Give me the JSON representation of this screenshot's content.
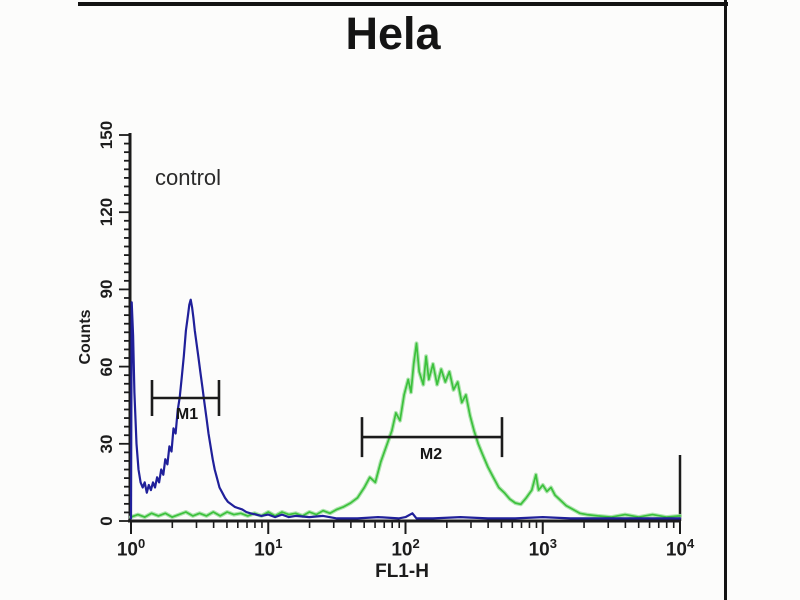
{
  "colors": {
    "axis": "#1b1b1b",
    "frame": "#131313",
    "curve_blue": "#20209a",
    "curve_green": "#3cc13c",
    "green_halo": "#a0dfa0",
    "background": "#fcfcfb",
    "text": "#1c1c1c"
  },
  "chart_data": {
    "type": "line",
    "title": "Hela",
    "xlabel": "FL1-H",
    "ylabel": "Counts",
    "x_scale": "log",
    "xlim_log": [
      0,
      4
    ],
    "ylim": [
      0,
      150
    ],
    "grid": false,
    "legend": "none",
    "x_tick_base": "10",
    "x_tick_exponents": [
      0,
      1,
      2,
      3,
      4
    ],
    "y_ticks": [
      0,
      30,
      60,
      90,
      120,
      150
    ],
    "annotations": [
      "control"
    ],
    "markers": [
      {
        "label": "M1",
        "x1_log": 0.153,
        "x2_log": 0.641,
        "y_counts": 47.8
      },
      {
        "label": "M2",
        "x1_log": 1.683,
        "x2_log": 2.703,
        "y_counts": 32.6
      }
    ],
    "series": [
      {
        "id": "blue",
        "label_on_plot": "control",
        "color": "#20209a",
        "peak_log_x": 0.435,
        "peak_counts": 86,
        "points": [
          [
            0.0,
            1
          ],
          [
            0.005,
            85
          ],
          [
            0.015,
            72
          ],
          [
            0.025,
            50
          ],
          [
            0.04,
            30
          ],
          [
            0.055,
            20
          ],
          [
            0.07,
            15
          ],
          [
            0.085,
            13
          ],
          [
            0.1,
            15
          ],
          [
            0.115,
            11
          ],
          [
            0.13,
            14
          ],
          [
            0.145,
            12
          ],
          [
            0.16,
            15
          ],
          [
            0.175,
            13
          ],
          [
            0.19,
            17
          ],
          [
            0.205,
            15
          ],
          [
            0.22,
            20
          ],
          [
            0.235,
            18
          ],
          [
            0.25,
            24
          ],
          [
            0.265,
            22
          ],
          [
            0.28,
            29
          ],
          [
            0.295,
            27
          ],
          [
            0.31,
            36
          ],
          [
            0.325,
            34
          ],
          [
            0.34,
            43
          ],
          [
            0.355,
            48
          ],
          [
            0.37,
            56
          ],
          [
            0.385,
            64
          ],
          [
            0.4,
            74
          ],
          [
            0.415,
            80
          ],
          [
            0.425,
            84
          ],
          [
            0.435,
            86
          ],
          [
            0.445,
            83
          ],
          [
            0.455,
            79
          ],
          [
            0.465,
            74
          ],
          [
            0.475,
            70
          ],
          [
            0.49,
            64
          ],
          [
            0.505,
            58
          ],
          [
            0.52,
            52
          ],
          [
            0.535,
            46
          ],
          [
            0.55,
            40
          ],
          [
            0.565,
            34
          ],
          [
            0.58,
            29
          ],
          [
            0.595,
            24
          ],
          [
            0.61,
            20
          ],
          [
            0.625,
            17
          ],
          [
            0.645,
            13
          ],
          [
            0.665,
            11
          ],
          [
            0.685,
            9
          ],
          [
            0.705,
            7.5
          ],
          [
            0.73,
            6.5
          ],
          [
            0.755,
            5.5
          ],
          [
            0.78,
            5
          ],
          [
            0.81,
            4.5
          ],
          [
            0.84,
            3.5
          ],
          [
            0.87,
            3
          ],
          [
            0.91,
            2.5
          ],
          [
            0.95,
            2
          ],
          [
            1.0,
            2.5
          ],
          [
            1.05,
            1.5
          ],
          [
            1.1,
            2.5
          ],
          [
            1.15,
            1.5
          ],
          [
            1.2,
            2
          ],
          [
            1.3,
            1.5
          ],
          [
            1.4,
            2
          ],
          [
            1.5,
            1
          ],
          [
            1.65,
            1
          ],
          [
            1.8,
            1.5
          ],
          [
            1.95,
            1
          ],
          [
            2.0,
            1.5
          ],
          [
            2.05,
            3
          ],
          [
            2.08,
            1
          ],
          [
            2.2,
            1
          ],
          [
            2.4,
            1.5
          ],
          [
            2.6,
            1
          ],
          [
            2.8,
            1
          ],
          [
            3.0,
            1.5
          ],
          [
            3.2,
            1
          ],
          [
            3.4,
            1
          ],
          [
            3.6,
            1
          ],
          [
            3.8,
            1
          ],
          [
            4.0,
            1
          ]
        ]
      },
      {
        "id": "green",
        "label_on_plot": "",
        "color": "#3cc13c",
        "peak_log_x": 2.08,
        "peak_counts": 69,
        "points": [
          [
            0.0,
            1.5
          ],
          [
            0.05,
            2.5
          ],
          [
            0.1,
            1.5
          ],
          [
            0.15,
            3
          ],
          [
            0.2,
            2
          ],
          [
            0.25,
            3
          ],
          [
            0.3,
            1.5
          ],
          [
            0.35,
            2.5
          ],
          [
            0.4,
            3.5
          ],
          [
            0.45,
            2
          ],
          [
            0.5,
            3
          ],
          [
            0.55,
            2
          ],
          [
            0.6,
            3.5
          ],
          [
            0.65,
            2
          ],
          [
            0.7,
            3.5
          ],
          [
            0.75,
            2.5
          ],
          [
            0.8,
            3
          ],
          [
            0.85,
            2
          ],
          [
            0.9,
            3
          ],
          [
            0.95,
            2
          ],
          [
            1.0,
            3.5
          ],
          [
            1.05,
            2
          ],
          [
            1.1,
            3.5
          ],
          [
            1.15,
            2.5
          ],
          [
            1.2,
            3
          ],
          [
            1.25,
            2
          ],
          [
            1.3,
            3.5
          ],
          [
            1.35,
            2.5
          ],
          [
            1.4,
            4
          ],
          [
            1.45,
            3
          ],
          [
            1.5,
            4.5
          ],
          [
            1.55,
            5.5
          ],
          [
            1.6,
            7
          ],
          [
            1.65,
            9
          ],
          [
            1.7,
            13
          ],
          [
            1.74,
            17
          ],
          [
            1.78,
            15
          ],
          [
            1.82,
            23
          ],
          [
            1.86,
            29
          ],
          [
            1.9,
            35
          ],
          [
            1.93,
            42
          ],
          [
            1.96,
            39
          ],
          [
            1.99,
            49
          ],
          [
            2.02,
            55
          ],
          [
            2.04,
            50
          ],
          [
            2.06,
            61
          ],
          [
            2.08,
            69
          ],
          [
            2.1,
            58
          ],
          [
            2.13,
            53
          ],
          [
            2.15,
            64
          ],
          [
            2.17,
            55
          ],
          [
            2.2,
            61
          ],
          [
            2.23,
            53
          ],
          [
            2.26,
            59
          ],
          [
            2.29,
            54
          ],
          [
            2.32,
            58
          ],
          [
            2.35,
            51
          ],
          [
            2.38,
            54
          ],
          [
            2.41,
            46
          ],
          [
            2.44,
            49
          ],
          [
            2.47,
            41
          ],
          [
            2.5,
            35
          ],
          [
            2.53,
            30
          ],
          [
            2.56,
            26
          ],
          [
            2.6,
            21
          ],
          [
            2.64,
            17
          ],
          [
            2.68,
            13
          ],
          [
            2.72,
            11
          ],
          [
            2.76,
            8.5
          ],
          [
            2.8,
            7
          ],
          [
            2.84,
            6.5
          ],
          [
            2.88,
            9
          ],
          [
            2.92,
            12
          ],
          [
            2.95,
            18
          ],
          [
            2.97,
            12
          ],
          [
            3.0,
            14
          ],
          [
            3.03,
            11.5
          ],
          [
            3.06,
            13
          ],
          [
            3.09,
            10
          ],
          [
            3.13,
            8
          ],
          [
            3.17,
            6
          ],
          [
            3.22,
            4.5
          ],
          [
            3.27,
            3
          ],
          [
            3.32,
            2.5
          ],
          [
            3.4,
            2
          ],
          [
            3.5,
            1.5
          ],
          [
            3.6,
            2.5
          ],
          [
            3.7,
            1.5
          ],
          [
            3.8,
            2.5
          ],
          [
            3.9,
            1.5
          ],
          [
            4.0,
            2
          ]
        ]
      }
    ]
  }
}
